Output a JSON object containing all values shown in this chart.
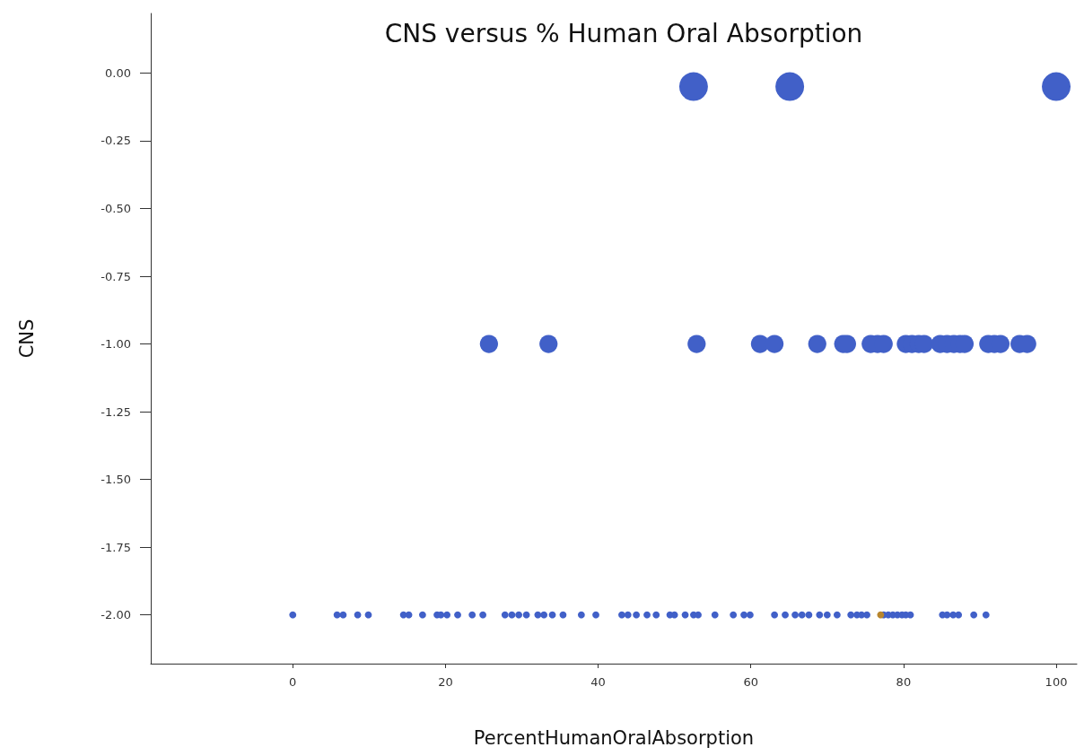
{
  "chart_data": {
    "type": "bubble",
    "title": "CNS versus % Human Oral Absorption",
    "xlabel": "PercentHumanOralAbsorption",
    "ylabel": "CNS",
    "xlim": [
      -18.6,
      102.7
    ],
    "xticks": [
      0,
      20,
      40,
      60,
      80,
      100
    ],
    "ylim": [
      -2.18,
      0.22
    ],
    "yticks": [
      {
        "value": 0,
        "label": "0.00"
      },
      {
        "value": -0.25,
        "label": "-0.25"
      },
      {
        "value": -0.5,
        "label": "-0.50"
      },
      {
        "value": -0.75,
        "label": "-0.75"
      },
      {
        "value": -1,
        "label": "-1.00"
      },
      {
        "value": -1.25,
        "label": "-1.25"
      },
      {
        "value": -1.5,
        "label": "-1.50"
      },
      {
        "value": -1.75,
        "label": "-1.75"
      },
      {
        "value": -2,
        "label": "-2.00"
      }
    ],
    "grid": false,
    "series": [
      {
        "color": "#4160c8",
        "x": [
          52.5,
          65.1,
          100,
          25.7,
          33.5,
          52.9,
          61.2,
          63.1,
          68.7,
          72.1,
          72.6,
          75.7,
          76.6,
          77.4,
          80.3,
          81.1,
          82.0,
          82.7,
          84.8,
          85.7,
          86.6,
          87.4,
          88.0,
          91.1,
          91.9,
          92.7,
          95.2,
          96.2,
          0,
          5.8,
          6.6,
          8.5,
          9.9,
          14.5,
          15.2,
          17.0,
          18.9,
          19.4,
          20.2,
          21.6,
          23.5,
          24.9,
          27.8,
          28.7,
          29.6,
          30.6,
          32.1,
          32.9,
          34.0,
          35.4,
          37.8,
          39.7,
          43.1,
          43.9,
          45.0,
          46.4,
          47.6,
          49.4,
          50.0,
          51.4,
          52.5,
          53.1,
          55.3,
          57.7,
          59.1,
          59.9,
          63.1,
          64.5,
          65.8,
          66.7,
          67.6,
          69.0,
          70.0,
          71.3,
          73.1,
          73.9,
          74.5,
          75.2,
          77.4,
          78.0,
          78.6,
          79.2,
          79.8,
          80.3,
          80.9,
          85.1,
          85.7,
          86.5,
          87.2,
          89.2,
          90.8
        ],
        "values": [
          -0.05,
          -0.05,
          -0.05,
          -1,
          -1,
          -1,
          -1,
          -1,
          -1,
          -1,
          -1,
          -1,
          -1,
          -1,
          -1,
          -1,
          -1,
          -1,
          -1,
          -1,
          -1,
          -1,
          -1,
          -1,
          -1,
          -1,
          -1,
          -1,
          -2,
          -2,
          -2,
          -2,
          -2,
          -2,
          -2,
          -2,
          -2,
          -2,
          -2,
          -2,
          -2,
          -2,
          -2,
          -2,
          -2,
          -2,
          -2,
          -2,
          -2,
          -2,
          -2,
          -2,
          -2,
          -2,
          -2,
          -2,
          -2,
          -2,
          -2,
          -2,
          -2,
          -2,
          -2,
          -2,
          -2,
          -2,
          -2,
          -2,
          -2,
          -2,
          -2,
          -2,
          -2,
          -2,
          -2,
          -2,
          -2,
          -2,
          -2,
          -2,
          -2,
          -2,
          -2,
          -2,
          -2,
          -2,
          -2,
          -2,
          -2,
          -2,
          -2
        ],
        "sizes": [
          1,
          1,
          1,
          0.4,
          0.4,
          0.4,
          0.4,
          0.4,
          0.4,
          0.4,
          0.4,
          0.4,
          0.4,
          0.4,
          0.4,
          0.4,
          0.4,
          0.4,
          0.4,
          0.4,
          0.4,
          0.4,
          0.4,
          0.4,
          0.4,
          0.4,
          0.4,
          0.4,
          0.06,
          0.06,
          0.06,
          0.06,
          0.06,
          0.06,
          0.06,
          0.06,
          0.06,
          0.06,
          0.06,
          0.06,
          0.06,
          0.06,
          0.06,
          0.06,
          0.06,
          0.06,
          0.06,
          0.06,
          0.06,
          0.06,
          0.06,
          0.06,
          0.06,
          0.06,
          0.06,
          0.06,
          0.06,
          0.06,
          0.06,
          0.06,
          0.06,
          0.06,
          0.06,
          0.06,
          0.06,
          0.06,
          0.06,
          0.06,
          0.06,
          0.06,
          0.06,
          0.06,
          0.06,
          0.06,
          0.06,
          0.06,
          0.06,
          0.06,
          0.06,
          0.06,
          0.06,
          0.06,
          0.06,
          0.06,
          0.06,
          0.06,
          0.06,
          0.06,
          0.06,
          0.06,
          0.06
        ]
      },
      {
        "color": "#b8862e",
        "x": [
          77.0
        ],
        "values": [
          -2
        ],
        "sizes": [
          0.06
        ]
      }
    ]
  }
}
